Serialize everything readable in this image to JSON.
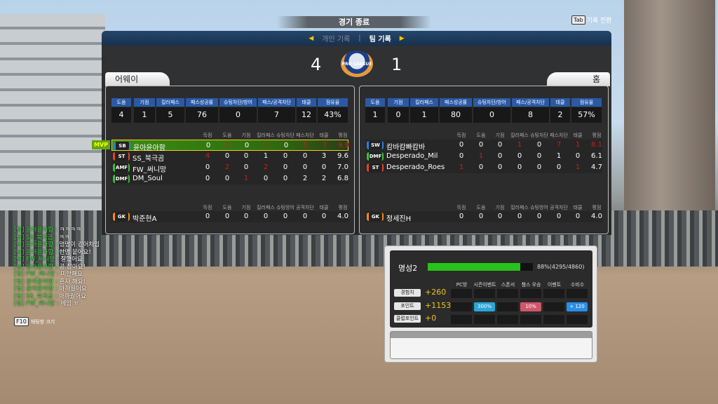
{
  "header": {
    "title": "경기 종료",
    "tab_key": "Tab",
    "tab_hint": "기록 전환",
    "nav_prev": "◀",
    "nav_next": "▶",
    "tab_personal": "개인 기록",
    "tab_team": "팀 기록",
    "separator": "|"
  },
  "score": {
    "away": "4",
    "home": "1",
    "logo_text": "PRO LEAGUE"
  },
  "team_stat_headers": [
    "도움",
    "기점",
    "킬러패스",
    "패스성공률",
    "슈팅차단/방어",
    "패스/공격차단",
    "태클",
    "점유율"
  ],
  "player_headers": [
    "득점",
    "도움",
    "기점",
    "킬러패스",
    "슈팅차단",
    "패스차단",
    "태클",
    "평점"
  ],
  "gk_headers": [
    "득점",
    "도움",
    "기점",
    "킬러패스",
    "슈팅방어",
    "공격차단",
    "태클",
    "평점"
  ],
  "away": {
    "label": "어웨이",
    "stats": [
      "4",
      "1",
      "5",
      "76",
      "0",
      "7",
      "12",
      "43%"
    ],
    "mvp_label": "MVP",
    "players": [
      {
        "pos": "SB",
        "pos_color": "#2f7fe0",
        "name": "윤아윤아함",
        "values": [
          "0",
          "2",
          "0",
          "2",
          "0",
          "5",
          "7",
          "9.9"
        ],
        "red": [
          1,
          3,
          5,
          6,
          7
        ]
      },
      {
        "pos": "ST",
        "pos_color": "#e0452a",
        "name": "SS_북극곰",
        "values": [
          "4",
          "0",
          "0",
          "1",
          "0",
          "0",
          "3",
          "9.6"
        ],
        "red": [
          0
        ]
      },
      {
        "pos": "AMF",
        "pos_color": "#3cbf3c",
        "name": "FW_써니망",
        "values": [
          "0",
          "2",
          "0",
          "2",
          "0",
          "0",
          "0",
          "7.0"
        ],
        "red": [
          1,
          3
        ]
      },
      {
        "pos": "DMF",
        "pos_color": "#3cbf3c",
        "name": "DM_Soul",
        "values": [
          "0",
          "0",
          "1",
          "0",
          "0",
          "2",
          "2",
          "6.8"
        ],
        "red": [
          2
        ]
      }
    ],
    "gk": {
      "pos": "GK",
      "pos_color": "#f08a1c",
      "name": "박준현A",
      "values": [
        "0",
        "0",
        "0",
        "0",
        "0",
        "0",
        "0",
        "4.0"
      ],
      "red": []
    }
  },
  "home": {
    "label": "홈",
    "stats": [
      "1",
      "0",
      "1",
      "80",
      "0",
      "8",
      "2",
      "57%"
    ],
    "players": [
      {
        "pos": "SW",
        "pos_color": "#2f7fe0",
        "name": "캄바캄빠캄바",
        "values": [
          "0",
          "0",
          "0",
          "1",
          "0",
          "7",
          "1",
          "8.1"
        ],
        "red": [
          3,
          5,
          6,
          7
        ]
      },
      {
        "pos": "DMF",
        "pos_color": "#3cbf3c",
        "name": "Desperado_Mil",
        "values": [
          "0",
          "1",
          "0",
          "0",
          "0",
          "1",
          "0",
          "6.1"
        ],
        "red": [
          1
        ]
      },
      {
        "pos": "ST",
        "pos_color": "#e0452a",
        "name": "Desperado_Roes",
        "values": [
          "1",
          "0",
          "0",
          "0",
          "0",
          "0",
          "1",
          "4.7"
        ],
        "red": [
          0,
          6
        ]
      }
    ],
    "gk": {
      "pos": "GK",
      "pos_color": "#f08a1c",
      "name": "정세진H",
      "values": [
        "0",
        "0",
        "0",
        "0",
        "0",
        "0",
        "0",
        "4.0"
      ],
      "red": []
    }
  },
  "chat": {
    "lines": [
      {
        "who": "[팀] 윤아윤아함 :",
        "msg": "ㅋㅋㅋㅋ"
      },
      {
        "who": "[팀] SS_북극곰 :",
        "msg": "ㅋㅋ"
      },
      {
        "who": "[팀] 윤아윤아함 :",
        "msg": "멍멍이 걷어차임"
      },
      {
        "who": "[팀] 윤아윤아함 :",
        "msg": "한명 붙어요!"
      },
      {
        "who": "[팀] FW_써니망 :",
        "msg": "잘했어요"
      },
      {
        "who": "[팀] 윤아윤아함 :",
        "msg": "공 잡아요!"
      },
      {
        "who": "[팀] FW_써니망 :",
        "msg": "미안해요"
      },
      {
        "who": "[팀] 윤아윤아함 :",
        "msg": "혼자 해요!"
      },
      {
        "who": "[팀] 윤아윤아함 :",
        "msg": "아까웠어요"
      },
      {
        "who": "[팀] SS_북극곰 :",
        "msg": "아까웠어요"
      },
      {
        "who": "[팀] FW_써니망 :",
        "msg": "에잉 ㅠ"
      }
    ],
    "size_key": "F10",
    "size_label": "채팅창 크기"
  },
  "reward": {
    "rank": "명성2",
    "progress_pct": 88,
    "progress_text": "88%(4295/4860)",
    "columns": [
      "PC방",
      "시즌이벤트",
      "스폰서",
      "챔스 우승",
      "이벤트",
      "수비수"
    ],
    "rows": [
      {
        "label": "경험치",
        "value": "+260",
        "cells": [
          "",
          "",
          "",
          "",
          "",
          ""
        ]
      },
      {
        "label": "포인트",
        "value": "+1153",
        "cells": [
          "",
          "300%",
          "",
          "10%",
          "",
          "+ 120"
        ]
      },
      {
        "label": "클럽포인트",
        "value": "+0",
        "cells": [
          "",
          "",
          "",
          "",
          "",
          ""
        ]
      }
    ],
    "cell_colors": {
      "300%": "#2aa7d6",
      "10%": "#d2566a",
      "+ 120": "#2a8ee8"
    }
  }
}
